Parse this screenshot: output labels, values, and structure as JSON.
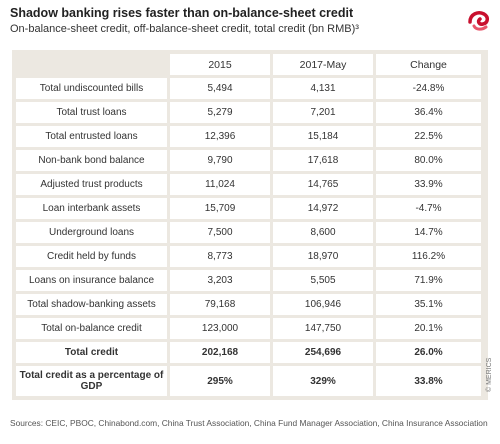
{
  "header": {
    "title": "Shadow banking rises faster than on-balance-sheet credit",
    "subtitle": "On-balance-sheet credit, off-balance-sheet credit, total credit (bn RMB)³"
  },
  "table": {
    "columns": [
      "",
      "2015",
      "2017-May",
      "Change"
    ],
    "rows": [
      [
        "Total undiscounted bills",
        "5,494",
        "4,131",
        "-24.8%"
      ],
      [
        "Total trust loans",
        "5,279",
        "7,201",
        "36.4%"
      ],
      [
        "Total entrusted loans",
        "12,396",
        "15,184",
        "22.5%"
      ],
      [
        "Non-bank bond balance",
        "9,790",
        "17,618",
        "80.0%"
      ],
      [
        "Adjusted trust products",
        "11,024",
        "14,765",
        "33.9%"
      ],
      [
        "Loan interbank assets",
        "15,709",
        "14,972",
        "-4.7%"
      ],
      [
        "Underground loans",
        "7,500",
        "8,600",
        "14.7%"
      ],
      [
        "Credit held by funds",
        "8,773",
        "18,970",
        "116.2%"
      ],
      [
        "Loans on insurance balance",
        "3,203",
        "5,505",
        "71.9%"
      ],
      [
        "Total shadow-banking assets",
        "79,168",
        "106,946",
        "35.1%"
      ],
      [
        "Total on-balance credit",
        "123,000",
        "147,750",
        "20.1%"
      ],
      [
        "Total credit",
        "202,168",
        "254,696",
        "26.0%"
      ],
      [
        "Total credit as a percentage of GDP",
        "295%",
        "329%",
        "33.8%"
      ]
    ]
  },
  "footer": {
    "sources": "Sources: CEIC, PBOC, Chinabond.com, China Trust Association, China Fund Manager Association, China Insurance Association",
    "credit": "© MERICS"
  }
}
